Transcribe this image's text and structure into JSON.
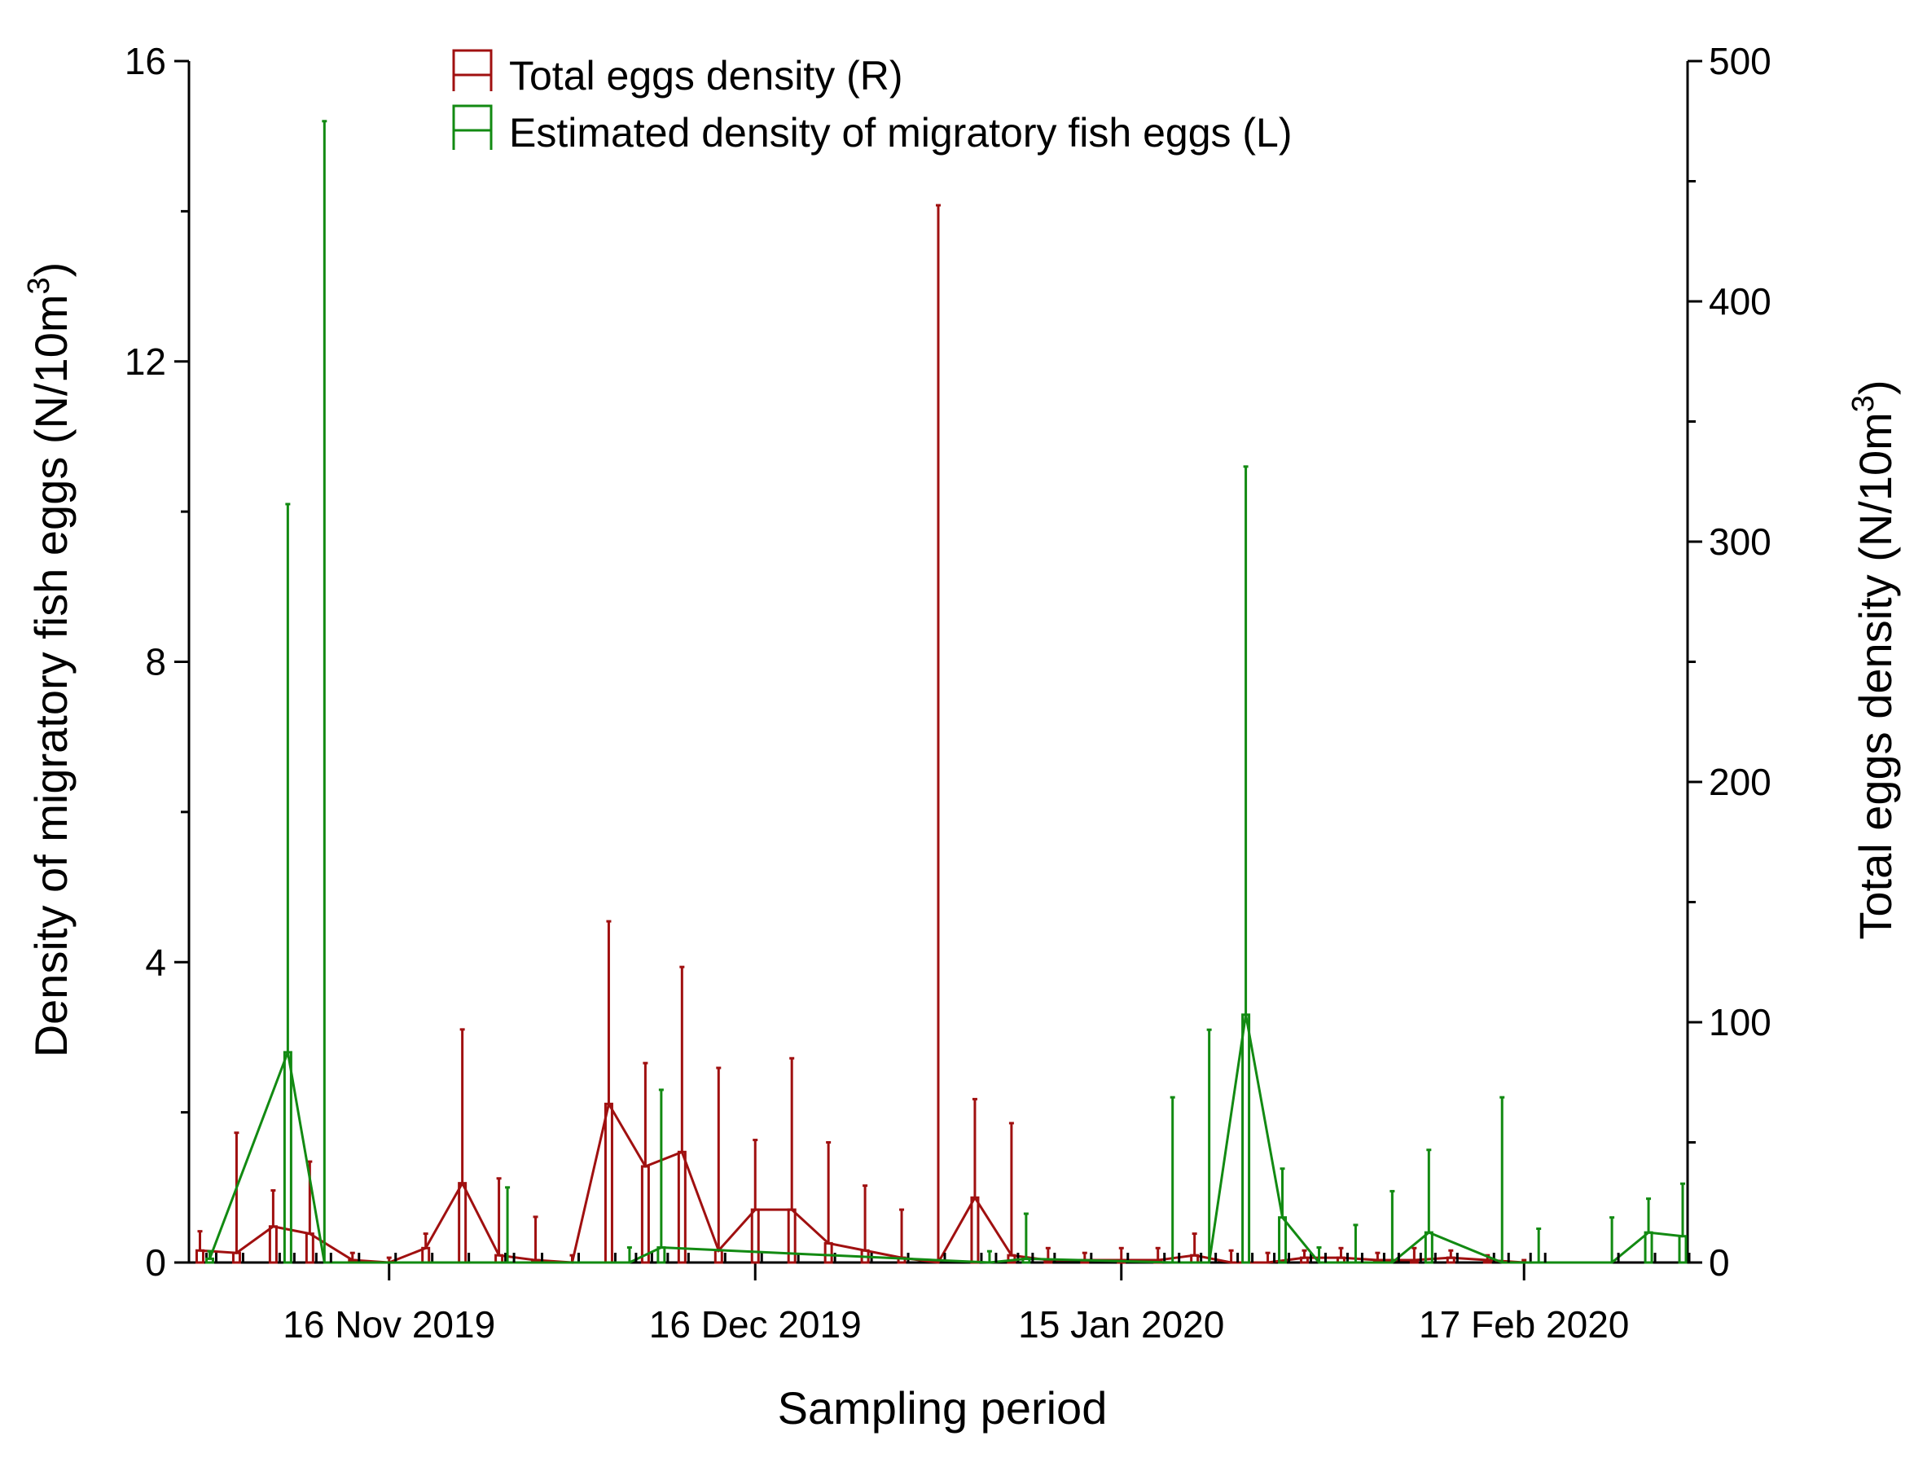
{
  "chart_data": {
    "type": "bar",
    "title": "",
    "xlabel": "Sampling period",
    "ylabel_left": "Density of migratory fish eggs (N/10m3)",
    "ylabel_right": "Total eggs density (N/10m3)",
    "ylim_left": [
      0,
      16
    ],
    "ylim_right": [
      0,
      500
    ],
    "x_range_days": [
      0,
      122
    ],
    "x_origin_date": "2019-10-31",
    "left_ticks": [
      "0",
      "4",
      "8",
      "12",
      "16"
    ],
    "right_ticks": [
      "0",
      "100",
      "200",
      "300",
      "400",
      "500"
    ],
    "x_ticks": [
      {
        "day": 16,
        "label": "16 Nov 2019"
      },
      {
        "day": 46,
        "label": "16 Dec 2019"
      },
      {
        "day": 76,
        "label": "15 Jan 2020"
      },
      {
        "day": 109,
        "label": "17 Feb 2020"
      }
    ],
    "legend": [
      {
        "label": "Total eggs density (R)",
        "color": "#a01010",
        "axis": "right"
      },
      {
        "label": "Estimated density of migratory fish eggs (L)",
        "color": "#128a12",
        "axis": "left"
      }
    ],
    "series": [
      {
        "name": "Total eggs density (R)",
        "axis": "right",
        "color": "#a01010",
        "points": [
          {
            "day": 0.5,
            "value": 5,
            "err": 8
          },
          {
            "day": 3.5,
            "value": 4,
            "err": 50
          },
          {
            "day": 6.5,
            "value": 15,
            "err": 15
          },
          {
            "day": 9.5,
            "value": 12,
            "err": 30
          },
          {
            "day": 13,
            "value": 1,
            "err": 3
          },
          {
            "day": 16,
            "value": 0,
            "err": 2
          },
          {
            "day": 19,
            "value": 6,
            "err": 6
          },
          {
            "day": 22,
            "value": 33,
            "err": 64
          },
          {
            "day": 25,
            "value": 3,
            "err": 32
          },
          {
            "day": 28,
            "value": 1,
            "err": 18
          },
          {
            "day": 31,
            "value": 0,
            "err": 3
          },
          {
            "day": 34,
            "value": 66,
            "err": 76
          },
          {
            "day": 37,
            "value": 40,
            "err": 43
          },
          {
            "day": 40,
            "value": 46,
            "err": 77
          },
          {
            "day": 43,
            "value": 5,
            "err": 76
          },
          {
            "day": 46,
            "value": 22,
            "err": 29
          },
          {
            "day": 49,
            "value": 22,
            "err": 63
          },
          {
            "day": 52,
            "value": 8,
            "err": 42
          },
          {
            "day": 55,
            "value": 5,
            "err": 27
          },
          {
            "day": 58,
            "value": 2,
            "err": 20
          },
          {
            "day": 61,
            "value": 0,
            "err": 440
          },
          {
            "day": 64,
            "value": 27,
            "err": 41
          },
          {
            "day": 67,
            "value": 3,
            "err": 55
          },
          {
            "day": 70,
            "value": 1,
            "err": 5
          },
          {
            "day": 73,
            "value": 1,
            "err": 3
          },
          {
            "day": 76,
            "value": 1,
            "err": 5
          },
          {
            "day": 79,
            "value": 1,
            "err": 5
          },
          {
            "day": 82,
            "value": 3,
            "err": 9
          },
          {
            "day": 85,
            "value": 0,
            "err": 5
          },
          {
            "day": 88,
            "value": 0,
            "err": 4
          },
          {
            "day": 91,
            "value": 2,
            "err": 3
          },
          {
            "day": 94,
            "value": 2,
            "err": 4
          },
          {
            "day": 97,
            "value": 1,
            "err": 3
          },
          {
            "day": 100,
            "value": 1,
            "err": 5
          },
          {
            "day": 103,
            "value": 2,
            "err": 3
          },
          {
            "day": 106,
            "value": 1,
            "err": 2
          },
          {
            "day": 109,
            "value": 0,
            "err": 1
          }
        ]
      },
      {
        "name": "Estimated density of migratory fish eggs (L)",
        "axis": "left",
        "color": "#128a12",
        "points": [
          {
            "day": 1.3,
            "value": 0.05,
            "err": 0.1
          },
          {
            "day": 7.7,
            "value": 2.8,
            "err": 7.3
          },
          {
            "day": 10.7,
            "value": 0,
            "err": 15.2
          },
          {
            "day": 25.7,
            "value": 0,
            "err": 1.0
          },
          {
            "day": 35.7,
            "value": 0,
            "err": 0.2
          },
          {
            "day": 38.3,
            "value": 0.2,
            "err": 2.1
          },
          {
            "day": 65.2,
            "value": 0,
            "err": 0.15
          },
          {
            "day": 68.2,
            "value": 0.05,
            "err": 0.6
          },
          {
            "day": 80.2,
            "value": 0,
            "err": 2.2
          },
          {
            "day": 83.2,
            "value": 0,
            "err": 3.1
          },
          {
            "day": 86.2,
            "value": 3.3,
            "err": 7.3
          },
          {
            "day": 89.2,
            "value": 0.6,
            "err": 0.65
          },
          {
            "day": 92.2,
            "value": 0,
            "err": 0.2
          },
          {
            "day": 95.2,
            "value": 0,
            "err": 0.5
          },
          {
            "day": 98.2,
            "value": 0,
            "err": 0.95
          },
          {
            "day": 101.2,
            "value": 0.4,
            "err": 1.1
          },
          {
            "day": 107.2,
            "value": 0,
            "err": 2.2
          },
          {
            "day": 110.2,
            "value": 0,
            "err": 0.45
          },
          {
            "day": 116.2,
            "value": 0,
            "err": 0.6
          },
          {
            "day": 119.2,
            "value": 0.4,
            "err": 0.45
          },
          {
            "day": 122,
            "value": 0.35,
            "err": 0.7
          }
        ]
      }
    ]
  }
}
